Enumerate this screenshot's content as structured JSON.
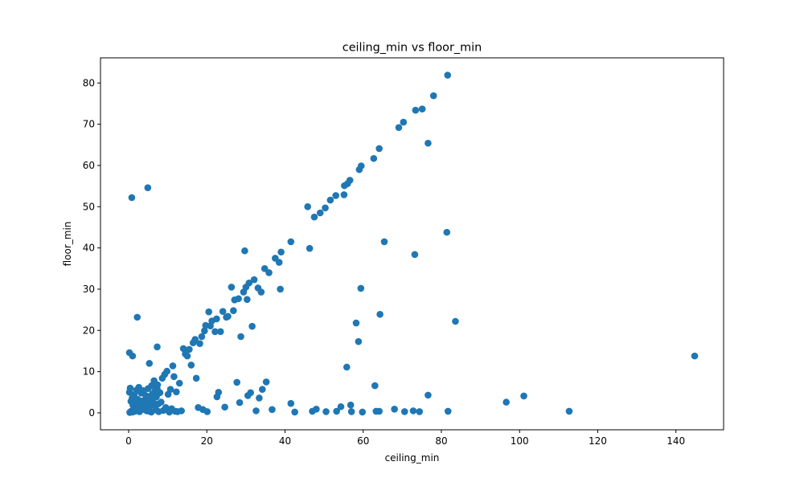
{
  "chart_data": {
    "type": "scatter",
    "title": "ceiling_min vs floor_min",
    "xlabel": "ceiling_min",
    "ylabel": "floor_min",
    "xlim": [
      -7.2,
      152.2
    ],
    "ylim": [
      -4.1,
      86.1
    ],
    "xticks": [
      0,
      20,
      40,
      60,
      80,
      100,
      120,
      140
    ],
    "yticks": [
      0,
      10,
      20,
      30,
      40,
      50,
      60,
      70,
      80
    ],
    "xtick_labels": [
      "0",
      "20",
      "40",
      "60",
      "80",
      "100",
      "120",
      "140"
    ],
    "ytick_labels": [
      "0",
      "10",
      "20",
      "30",
      "40",
      "50",
      "60",
      "70",
      "80"
    ],
    "grid": false,
    "marker_color": "#1f77b4",
    "points": [
      [
        0.8,
        52.2
      ],
      [
        4.9,
        54.6
      ],
      [
        2.2,
        23.2
      ],
      [
        0.2,
        14.6
      ],
      [
        1.0,
        13.8
      ],
      [
        7.3,
        16.0
      ],
      [
        5.3,
        12.0
      ],
      [
        0.3,
        0.1
      ],
      [
        0.5,
        0.3
      ],
      [
        0.8,
        0.5
      ],
      [
        1.0,
        0.2
      ],
      [
        1.3,
        0.8
      ],
      [
        1.6,
        0.4
      ],
      [
        1.9,
        1.2
      ],
      [
        2.2,
        0.6
      ],
      [
        2.5,
        1.5
      ],
      [
        2.8,
        0.3
      ],
      [
        3.1,
        2.0
      ],
      [
        3.4,
        0.9
      ],
      [
        3.7,
        2.5
      ],
      [
        4.0,
        1.1
      ],
      [
        4.3,
        3.0
      ],
      [
        4.6,
        0.5
      ],
      [
        4.9,
        3.5
      ],
      [
        5.2,
        1.4
      ],
      [
        5.5,
        4.0
      ],
      [
        5.8,
        0.2
      ],
      [
        6.1,
        4.6
      ],
      [
        6.4,
        1.8
      ],
      [
        6.7,
        5.2
      ],
      [
        7.0,
        0.7
      ],
      [
        7.3,
        5.8
      ],
      [
        7.6,
        2.2
      ],
      [
        0.2,
        5.0
      ],
      [
        0.4,
        6.0
      ],
      [
        0.6,
        2.8
      ],
      [
        0.9,
        3.6
      ],
      [
        1.1,
        1.9
      ],
      [
        1.4,
        4.4
      ],
      [
        1.7,
        2.4
      ],
      [
        2.0,
        5.5
      ],
      [
        2.3,
        3.3
      ],
      [
        2.6,
        6.2
      ],
      [
        2.9,
        1.0
      ],
      [
        3.2,
        4.8
      ],
      [
        3.5,
        2.9
      ],
      [
        3.8,
        5.4
      ],
      [
        4.1,
        0.8
      ],
      [
        4.4,
        4.2
      ],
      [
        4.7,
        2.1
      ],
      [
        5.0,
        5.9
      ],
      [
        5.3,
        0.4
      ],
      [
        5.6,
        3.2
      ],
      [
        5.9,
        6.6
      ],
      [
        6.2,
        2.7
      ],
      [
        6.5,
        7.8
      ],
      [
        6.8,
        1.6
      ],
      [
        7.1,
        3.9
      ],
      [
        7.4,
        6.8
      ],
      [
        7.7,
        0.3
      ],
      [
        8.0,
        4.9
      ],
      [
        8.3,
        2.6
      ],
      [
        8.6,
        8.4
      ],
      [
        8.9,
        0.6
      ],
      [
        9.2,
        9.3
      ],
      [
        9.5,
        1.3
      ],
      [
        9.8,
        10.1
      ],
      [
        10.1,
        4.5
      ],
      [
        10.4,
        0.2
      ],
      [
        10.7,
        5.7
      ],
      [
        11.0,
        1.0
      ],
      [
        11.3,
        11.4
      ],
      [
        11.6,
        8.8
      ],
      [
        11.9,
        0.4
      ],
      [
        12.2,
        5.1
      ],
      [
        12.5,
        0.3
      ],
      [
        13.0,
        7.2
      ],
      [
        13.5,
        0.5
      ],
      [
        14.0,
        15.6
      ],
      [
        14.5,
        14.3
      ],
      [
        15.0,
        13.8
      ],
      [
        15.5,
        15.4
      ],
      [
        16.0,
        11.6
      ],
      [
        16.5,
        17.0
      ],
      [
        17.0,
        17.8
      ],
      [
        17.3,
        8.4
      ],
      [
        17.8,
        1.3
      ],
      [
        18.2,
        16.8
      ],
      [
        18.7,
        18.5
      ],
      [
        19.0,
        0.8
      ],
      [
        19.4,
        19.9
      ],
      [
        19.7,
        21.2
      ],
      [
        20.1,
        0.3
      ],
      [
        20.5,
        24.5
      ],
      [
        20.9,
        21.1
      ],
      [
        21.3,
        22.3
      ],
      [
        22.1,
        19.7
      ],
      [
        22.5,
        22.8
      ],
      [
        22.6,
        3.9
      ],
      [
        23.0,
        5.0
      ],
      [
        23.5,
        19.7
      ],
      [
        24.1,
        24.6
      ],
      [
        24.6,
        1.4
      ],
      [
        25.0,
        23.2
      ],
      [
        25.4,
        23.4
      ],
      [
        26.3,
        30.5
      ],
      [
        26.8,
        24.8
      ],
      [
        27.1,
        27.4
      ],
      [
        27.7,
        7.4
      ],
      [
        28.1,
        27.7
      ],
      [
        28.4,
        2.5
      ],
      [
        28.7,
        18.5
      ],
      [
        29.4,
        29.3
      ],
      [
        29.7,
        39.3
      ],
      [
        30.0,
        30.5
      ],
      [
        30.3,
        27.5
      ],
      [
        30.5,
        4.2
      ],
      [
        30.8,
        31.5
      ],
      [
        31.2,
        4.9
      ],
      [
        31.6,
        21.0
      ],
      [
        32.1,
        32.3
      ],
      [
        32.6,
        0.5
      ],
      [
        33.1,
        30.3
      ],
      [
        33.4,
        3.6
      ],
      [
        33.9,
        29.3
      ],
      [
        34.2,
        5.7
      ],
      [
        34.8,
        35.0
      ],
      [
        35.2,
        7.5
      ],
      [
        35.9,
        34.0
      ],
      [
        36.7,
        0.8
      ],
      [
        37.5,
        37.5
      ],
      [
        38.5,
        36.5
      ],
      [
        38.8,
        30.0
      ],
      [
        39.0,
        39.0
      ],
      [
        41.5,
        41.5
      ],
      [
        41.5,
        2.3
      ],
      [
        42.5,
        0.2
      ],
      [
        45.8,
        50.0
      ],
      [
        46.3,
        39.9
      ],
      [
        47.0,
        0.4
      ],
      [
        47.5,
        47.5
      ],
      [
        48.0,
        0.9
      ],
      [
        49.0,
        48.5
      ],
      [
        50.3,
        49.7
      ],
      [
        50.5,
        0.3
      ],
      [
        51.6,
        51.6
      ],
      [
        53.0,
        52.7
      ],
      [
        53.2,
        0.4
      ],
      [
        54.3,
        1.5
      ],
      [
        55.1,
        52.9
      ],
      [
        55.2,
        55.1
      ],
      [
        55.8,
        11.1
      ],
      [
        56.0,
        55.6
      ],
      [
        56.6,
        56.4
      ],
      [
        56.8,
        1.9
      ],
      [
        57.0,
        0.3
      ],
      [
        58.2,
        21.8
      ],
      [
        58.8,
        17.3
      ],
      [
        59.0,
        59.0
      ],
      [
        59.4,
        30.2
      ],
      [
        59.5,
        59.9
      ],
      [
        59.8,
        0.2
      ],
      [
        62.7,
        61.7
      ],
      [
        63.0,
        6.6
      ],
      [
        63.3,
        0.4
      ],
      [
        64.1,
        64.1
      ],
      [
        64.3,
        23.9
      ],
      [
        64.1,
        0.4
      ],
      [
        65.4,
        41.5
      ],
      [
        68.0,
        0.9
      ],
      [
        69.1,
        69.2
      ],
      [
        70.3,
        70.5
      ],
      [
        70.6,
        0.3
      ],
      [
        72.8,
        0.5
      ],
      [
        73.2,
        38.4
      ],
      [
        73.4,
        73.4
      ],
      [
        74.4,
        0.3
      ],
      [
        75.1,
        73.7
      ],
      [
        76.6,
        65.4
      ],
      [
        76.6,
        4.3
      ],
      [
        78.0,
        76.9
      ],
      [
        81.4,
        43.8
      ],
      [
        81.6,
        81.9
      ],
      [
        81.7,
        0.4
      ],
      [
        83.6,
        22.2
      ],
      [
        96.6,
        2.6
      ],
      [
        101.1,
        4.1
      ],
      [
        112.7,
        0.4
      ],
      [
        144.8,
        13.8
      ]
    ]
  }
}
